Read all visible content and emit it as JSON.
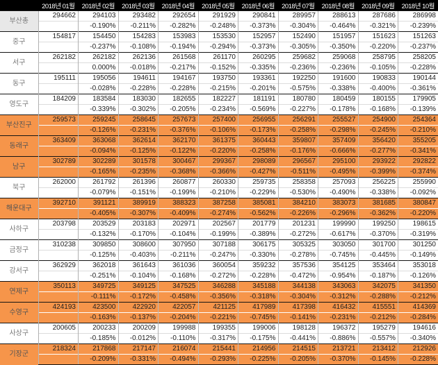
{
  "colors": {
    "highlight": "#F6954A",
    "header-bg": "#000000",
    "header-text": "#FFFFFF",
    "total-bg": "#E8E8E8"
  },
  "table": {
    "corner_label": "",
    "months": [
      "2018년 01월",
      "2018년 02월",
      "2018년 03월",
      "2018년 04월",
      "2018년 05월",
      "2018년 06월",
      "2018년 07월",
      "2018년 08월",
      "2018년 09월",
      "2018년 10월"
    ],
    "rows": [
      {
        "name": "부산총",
        "highlight": false,
        "total": true,
        "values": [
          294662,
          294103,
          293482,
          292654,
          291929,
          290841,
          289957,
          288613,
          287686,
          286998
        ],
        "changes": [
          "",
          "-0.190%",
          "-0.211%",
          "-0.282%",
          "-0.248%",
          "-0.373%",
          "-0.304%",
          "-0.464%",
          "-0.321%",
          "-0.239%"
        ]
      },
      {
        "name": "중구",
        "highlight": false,
        "total": false,
        "values": [
          154817,
          154450,
          154283,
          153983,
          153530,
          152957,
          152490,
          151957,
          151623,
          151263
        ],
        "changes": [
          "",
          "-0.237%",
          "-0.108%",
          "-0.194%",
          "-0.294%",
          "-0.373%",
          "-0.305%",
          "-0.350%",
          "-0.220%",
          "-0.237%"
        ]
      },
      {
        "name": "서구",
        "highlight": false,
        "total": false,
        "values": [
          262182,
          262182,
          262136,
          261568,
          261170,
          260295,
          259682,
          259068,
          258795,
          258205
        ],
        "changes": [
          "",
          "0.000%",
          "-0.018%",
          "-0.217%",
          "-0.152%",
          "-0.335%",
          "-0.236%",
          "-0.236%",
          "-0.105%",
          "-0.228%"
        ]
      },
      {
        "name": "동구",
        "highlight": false,
        "total": false,
        "values": [
          195111,
          195056,
          194611,
          194167,
          193750,
          193361,
          192250,
          191600,
          190833,
          190144
        ],
        "changes": [
          "",
          "-0.028%",
          "-0.228%",
          "-0.228%",
          "-0.215%",
          "-0.201%",
          "-0.575%",
          "-0.338%",
          "-0.400%",
          "-0.361%"
        ]
      },
      {
        "name": "영도구",
        "highlight": false,
        "total": false,
        "values": [
          184209,
          183584,
          183030,
          182655,
          182227,
          181191,
          180780,
          180459,
          180155,
          179905
        ],
        "changes": [
          "",
          "-0.339%",
          "-0.302%",
          "-0.205%",
          "-0.234%",
          "-0.569%",
          "-0.227%",
          "-0.178%",
          "-0.168%",
          "-0.139%"
        ]
      },
      {
        "name": "부산진구",
        "highlight": true,
        "total": false,
        "values": [
          259573,
          259245,
          258645,
          257673,
          257400,
          256955,
          256291,
          255527,
          254900,
          254364
        ],
        "changes": [
          "",
          "-0.126%",
          "-0.231%",
          "-0.376%",
          "-0.106%",
          "-0.173%",
          "-0.258%",
          "-0.298%",
          "-0.245%",
          "-0.210%"
        ]
      },
      {
        "name": "동래구",
        "highlight": true,
        "total": false,
        "values": [
          363409,
          363068,
          362614,
          362170,
          361375,
          360443,
          359807,
          357409,
          356420,
          355205
        ],
        "changes": [
          "",
          "-0.094%",
          "-0.125%",
          "-0.122%",
          "-0.220%",
          "-0.258%",
          "-0.176%",
          "-0.666%",
          "-0.277%",
          "-0.341%"
        ]
      },
      {
        "name": "남구",
        "highlight": true,
        "total": false,
        "values": [
          302789,
          302289,
          301578,
          300467,
          299367,
          298089,
          296567,
          295100,
          293922,
          292822
        ],
        "changes": [
          "",
          "-0.165%",
          "-0.235%",
          "-0.368%",
          "-0.366%",
          "-0.427%",
          "-0.511%",
          "-0.495%",
          "-0.399%",
          "-0.374%"
        ]
      },
      {
        "name": "북구",
        "highlight": false,
        "total": false,
        "values": [
          262000,
          261792,
          261396,
          260877,
          260330,
          259735,
          258358,
          257093,
          256225,
          255990
        ],
        "changes": [
          "",
          "-0.079%",
          "-0.151%",
          "-0.199%",
          "-0.210%",
          "-0.229%",
          "-0.530%",
          "-0.490%",
          "-0.338%",
          "-0.092%"
        ]
      },
      {
        "name": "해운대구",
        "highlight": true,
        "total": false,
        "values": [
          392710,
          391121,
          389919,
          388323,
          387258,
          385081,
          384210,
          383073,
          381685,
          380847
        ],
        "changes": [
          "",
          "-0.405%",
          "-0.307%",
          "-0.409%",
          "-0.274%",
          "-0.562%",
          "-0.226%",
          "-0.296%",
          "-0.362%",
          "-0.220%"
        ]
      },
      {
        "name": "사하구",
        "highlight": false,
        "total": false,
        "values": [
          203798,
          203529,
          203183,
          202971,
          202567,
          201779,
          201231,
          199990,
          199250,
          198615
        ],
        "changes": [
          "",
          "-0.132%",
          "-0.170%",
          "-0.104%",
          "-0.199%",
          "-0.389%",
          "-0.272%",
          "-0.617%",
          "-0.370%",
          "-0.319%"
        ]
      },
      {
        "name": "금정구",
        "highlight": false,
        "total": false,
        "values": [
          310238,
          309850,
          308600,
          307950,
          307188,
          306175,
          305325,
          303050,
          301700,
          301250
        ],
        "changes": [
          "",
          "-0.125%",
          "-0.403%",
          "-0.211%",
          "-0.247%",
          "-0.330%",
          "-0.278%",
          "-0.745%",
          "-0.445%",
          "-0.149%"
        ]
      },
      {
        "name": "강서구",
        "highlight": false,
        "total": false,
        "values": [
          362929,
          362018,
          361643,
          361036,
          360054,
          359232,
          357536,
          354125,
          353464,
          353018
        ],
        "changes": [
          "",
          "-0.251%",
          "-0.104%",
          "-0.168%",
          "-0.272%",
          "-0.228%",
          "-0.472%",
          "-0.954%",
          "-0.187%",
          "-0.126%"
        ]
      },
      {
        "name": "연제구",
        "highlight": true,
        "total": false,
        "values": [
          350113,
          349725,
          349125,
          347525,
          346288,
          345188,
          344138,
          343063,
          342075,
          341350
        ],
        "changes": [
          "",
          "-0.111%",
          "-0.172%",
          "-0.458%",
          "-0.356%",
          "-0.318%",
          "-0.304%",
          "-0.312%",
          "-0.288%",
          "-0.212%"
        ]
      },
      {
        "name": "수영구",
        "highlight": true,
        "total": false,
        "values": [
          424193,
          423500,
          422920,
          422057,
          421125,
          417989,
          417398,
          416432,
          415551,
          414369
        ],
        "changes": [
          "",
          "-0.163%",
          "-0.137%",
          "-0.204%",
          "-0.221%",
          "-0.745%",
          "-0.141%",
          "-0.231%",
          "-0.212%",
          "-0.284%"
        ]
      },
      {
        "name": "사상구",
        "highlight": false,
        "total": false,
        "values": [
          200605,
          200233,
          200209,
          199988,
          199355,
          199006,
          198128,
          196372,
          195279,
          194616
        ],
        "changes": [
          "",
          "-0.185%",
          "-0.012%",
          "-0.110%",
          "-0.317%",
          "-0.175%",
          "-0.441%",
          "-0.886%",
          "-0.557%",
          "-0.340%"
        ]
      },
      {
        "name": "기장군",
        "highlight": true,
        "total": false,
        "values": [
          218324,
          217868,
          217147,
          216074,
          215441,
          214956,
          214515,
          213721,
          213412,
          212926
        ],
        "changes": [
          "",
          "-0.209%",
          "-0.331%",
          "-0.494%",
          "-0.293%",
          "-0.225%",
          "-0.205%",
          "-0.370%",
          "-0.145%",
          "-0.228%"
        ]
      }
    ]
  }
}
